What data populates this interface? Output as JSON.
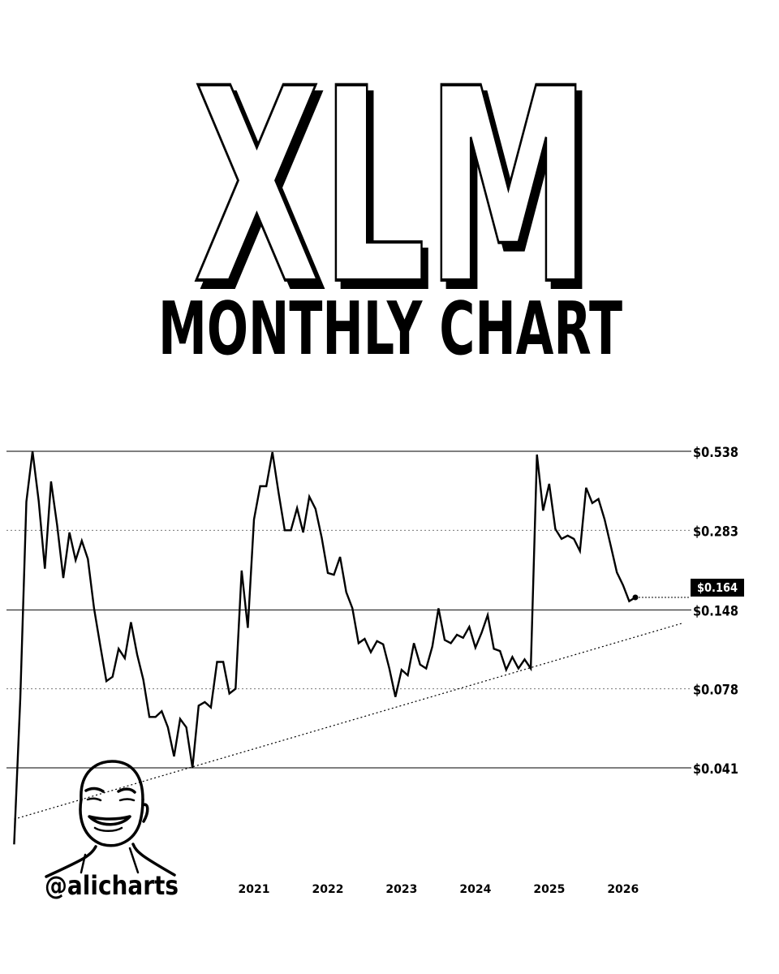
{
  "header": {
    "title": "XLM",
    "subtitle": "MONTHLY CHART"
  },
  "branding": {
    "handle": "@alicharts",
    "avatar_icon": "cartoon-portrait"
  },
  "colors": {
    "line": "#000000",
    "grid": "#333333",
    "background": "#ffffff",
    "price_tag_bg": "#000000",
    "price_tag_text": "#ffffff"
  },
  "chart_data": {
    "type": "line",
    "title": "XLM MONTHLY CHART",
    "xlabel": "",
    "ylabel": "",
    "y_scale": "log",
    "ylim": [
      0.041,
      0.538
    ],
    "grid": false,
    "x_tick_labels": [
      "2021",
      "2022",
      "2023",
      "2024",
      "2025",
      "2026"
    ],
    "levels": [
      {
        "value": 0.538,
        "label": "$0.538",
        "style": "solid"
      },
      {
        "value": 0.283,
        "label": "$0.283",
        "style": "dotted"
      },
      {
        "value": 0.148,
        "label": "$0.148",
        "style": "solid"
      },
      {
        "value": 0.078,
        "label": "$0.078",
        "style": "dotted"
      },
      {
        "value": 0.041,
        "label": "$0.041",
        "style": "solid"
      }
    ],
    "current_price": {
      "value": 0.164,
      "label": "$0.164"
    },
    "trendline": {
      "style": "dotted",
      "points": [
        [
          "2017-10",
          0.027
        ],
        [
          "2026-12",
          0.133
        ]
      ]
    },
    "series": [
      {
        "x": [
          "2017-10",
          "2017-11",
          "2017-12",
          "2018-01",
          "2018-02",
          "2018-03",
          "2018-04",
          "2018-05",
          "2018-06",
          "2018-07",
          "2018-08",
          "2018-09",
          "2018-10",
          "2018-11",
          "2018-12",
          "2019-01",
          "2019-02",
          "2019-03",
          "2019-04",
          "2019-05",
          "2019-06",
          "2019-07",
          "2019-08",
          "2019-09",
          "2019-10",
          "2019-11",
          "2019-12",
          "2020-01",
          "2020-02",
          "2020-03",
          "2020-04",
          "2020-05",
          "2020-06",
          "2020-07",
          "2020-08",
          "2020-09",
          "2020-10",
          "2020-11",
          "2020-12",
          "2021-01",
          "2021-02",
          "2021-03",
          "2021-04",
          "2021-05",
          "2021-06",
          "2021-07",
          "2021-08",
          "2021-09",
          "2021-10",
          "2021-11",
          "2021-12",
          "2022-01",
          "2022-02",
          "2022-03",
          "2022-04",
          "2022-05",
          "2022-06",
          "2022-07",
          "2022-08",
          "2022-09",
          "2022-10",
          "2022-11",
          "2022-12",
          "2023-01",
          "2023-02",
          "2023-03",
          "2023-04",
          "2023-05",
          "2023-06",
          "2023-07",
          "2023-08",
          "2023-09",
          "2023-10",
          "2023-11",
          "2023-12",
          "2024-01",
          "2024-02",
          "2024-03",
          "2024-04",
          "2024-05",
          "2024-06",
          "2024-07",
          "2024-08",
          "2024-09",
          "2024-10",
          "2024-11",
          "2024-12",
          "2025-01",
          "2025-02",
          "2025-03",
          "2025-04",
          "2025-05",
          "2025-06",
          "2025-07",
          "2025-08",
          "2025-09",
          "2025-10",
          "2025-11",
          "2025-12",
          "2026-01",
          "2026-02",
          "2026-03"
        ],
        "values": [
          0.022,
          0.072,
          0.357,
          0.538,
          0.359,
          0.207,
          0.421,
          0.295,
          0.192,
          0.278,
          0.222,
          0.26,
          0.224,
          0.15,
          0.111,
          0.083,
          0.086,
          0.108,
          0.1,
          0.134,
          0.103,
          0.084,
          0.062,
          0.062,
          0.065,
          0.057,
          0.045,
          0.061,
          0.057,
          0.041,
          0.068,
          0.07,
          0.067,
          0.097,
          0.097,
          0.075,
          0.078,
          0.204,
          0.128,
          0.309,
          0.405,
          0.405,
          0.534,
          0.384,
          0.283,
          0.283,
          0.339,
          0.278,
          0.372,
          0.337,
          0.267,
          0.2,
          0.197,
          0.228,
          0.171,
          0.15,
          0.113,
          0.117,
          0.105,
          0.115,
          0.112,
          0.092,
          0.073,
          0.091,
          0.087,
          0.113,
          0.095,
          0.092,
          0.11,
          0.15,
          0.116,
          0.113,
          0.121,
          0.118,
          0.129,
          0.109,
          0.123,
          0.142,
          0.108,
          0.106,
          0.091,
          0.101,
          0.092,
          0.099,
          0.092,
          0.524,
          0.332,
          0.413,
          0.286,
          0.264,
          0.271,
          0.264,
          0.239,
          0.4,
          0.353,
          0.365,
          0.309,
          0.25,
          0.201,
          0.181,
          0.159,
          0.164
        ]
      }
    ]
  }
}
